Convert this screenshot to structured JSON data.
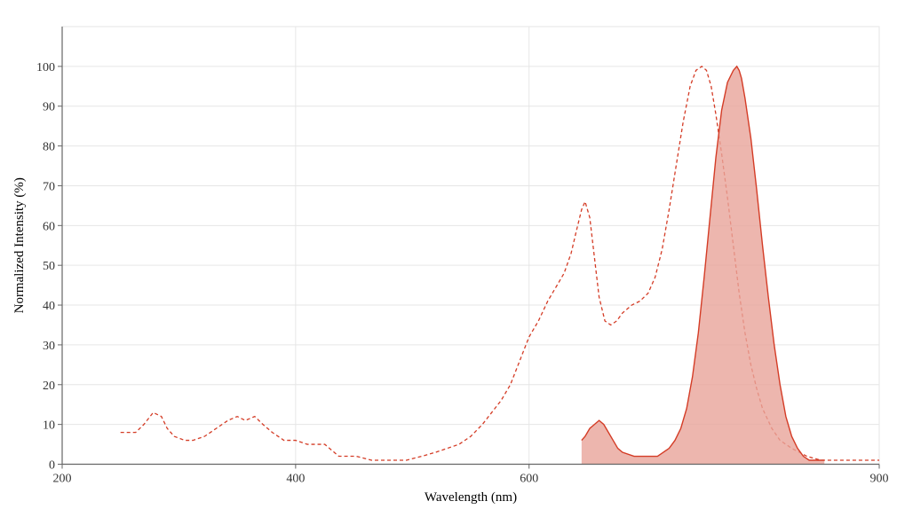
{
  "chart_data": {
    "type": "area",
    "xlabel": "Wavelength (nm)",
    "ylabel": "Normalized Intensity (%)",
    "xlim": [
      200,
      900
    ],
    "ylim": [
      0,
      110
    ],
    "x_ticks": [
      200,
      400,
      600,
      900
    ],
    "y_ticks": [
      0,
      10,
      20,
      30,
      40,
      50,
      60,
      70,
      80,
      90,
      100
    ],
    "x_gridlines": [
      200,
      400,
      600,
      900
    ],
    "grid": true,
    "legend": "none",
    "colors": {
      "line": "#d43c26",
      "fill": "#e8a49a",
      "grid": "#e6e6e6",
      "axis": "#666666"
    },
    "series": [
      {
        "style": "dashed-line",
        "x": [
          250,
          263,
          270,
          278,
          285,
          290,
          296,
          305,
          312,
          322,
          332,
          342,
          350,
          357,
          365,
          372,
          380,
          390,
          400,
          410,
          425,
          437,
          452,
          465,
          480,
          495,
          508,
          520,
          530,
          540,
          550,
          560,
          568,
          576,
          584,
          592,
          600,
          608,
          616,
          624,
          630,
          636,
          640,
          645,
          648,
          652,
          656,
          660,
          665,
          670,
          675,
          680,
          688,
          695,
          702,
          708,
          714,
          720,
          726,
          732,
          738,
          743,
          748,
          752,
          756,
          760,
          765,
          770,
          775,
          780,
          785,
          790,
          795,
          800,
          808,
          815,
          825,
          838,
          850,
          865,
          880,
          900
        ],
        "y": [
          8,
          8,
          10,
          13,
          12,
          9,
          7,
          6,
          6,
          7,
          9,
          11,
          12,
          11,
          12,
          10,
          8,
          6,
          6,
          5,
          5,
          2,
          2,
          1,
          1,
          1,
          2,
          3,
          4,
          5,
          7,
          10,
          13,
          16,
          20,
          26,
          32,
          36,
          41,
          45,
          48,
          53,
          58,
          64,
          66,
          62,
          52,
          42,
          36,
          35,
          36,
          38,
          40,
          41,
          43,
          47,
          54,
          64,
          75,
          86,
          95,
          99,
          100,
          99,
          95,
          88,
          78,
          67,
          55,
          43,
          33,
          25,
          19,
          14,
          9,
          6,
          4,
          2,
          1,
          1,
          1,
          1
        ]
      },
      {
        "style": "filled-area",
        "x": [
          645,
          648,
          652,
          656,
          660,
          664,
          668,
          672,
          676,
          680,
          690,
          700,
          710,
          715,
          720,
          725,
          730,
          735,
          740,
          745,
          750,
          755,
          760,
          765,
          770,
          775,
          778,
          780,
          782,
          785,
          790,
          795,
          800,
          805,
          810,
          815,
          820,
          825,
          830,
          835,
          840,
          845,
          850,
          853
        ],
        "y": [
          6,
          7,
          9,
          10,
          11,
          10,
          8,
          6,
          4,
          3,
          2,
          2,
          2,
          3,
          4,
          6,
          9,
          14,
          22,
          33,
          47,
          62,
          77,
          89,
          96,
          99,
          100,
          99,
          97,
          92,
          82,
          69,
          55,
          42,
          30,
          20,
          12,
          7,
          4,
          2,
          1,
          1,
          1,
          1
        ]
      }
    ]
  }
}
